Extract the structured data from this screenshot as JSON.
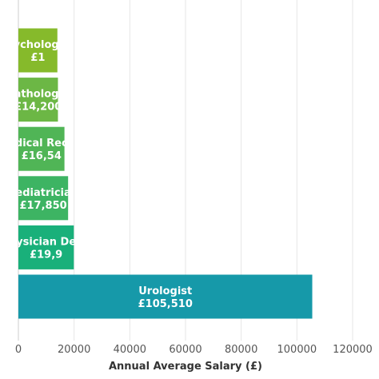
{
  "chart_data": {
    "type": "bar",
    "orientation": "horizontal",
    "categories": [
      "Urologist",
      "Physician Dermatologist",
      "Pediatrician",
      "Medical Receptionist",
      "Pathologist",
      "Psychologist"
    ],
    "values": [
      105510,
      19900,
      17850,
      16540,
      14200,
      14000
    ],
    "bar_labels": [
      [
        "Urologist",
        "£105,510"
      ],
      [
        "ysician De",
        "£19,9"
      ],
      [
        "ediatricia",
        "£17,850"
      ],
      [
        "dical Rec",
        "£16,54"
      ],
      [
        "athologi",
        "£14,200"
      ],
      [
        "ychologi",
        "£1"
      ]
    ],
    "colors": [
      "#1699a9",
      "#19b07a",
      "#3db463",
      "#50b556",
      "#6cb745",
      "#86ba2b"
    ],
    "xlabel": "Annual Average Salary (£)",
    "xlim": [
      0,
      120000
    ],
    "xticks": [
      "0",
      "20000",
      "40000",
      "60000",
      "80000",
      "100000",
      "120000"
    ],
    "grid": true,
    "legend": "none"
  }
}
